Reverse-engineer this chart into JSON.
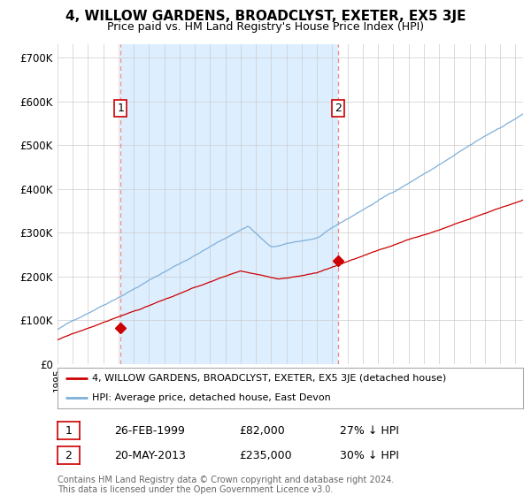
{
  "title": "4, WILLOW GARDENS, BROADCLYST, EXETER, EX5 3JE",
  "subtitle": "Price paid vs. HM Land Registry's House Price Index (HPI)",
  "ylabel_ticks": [
    "£0",
    "£100K",
    "£200K",
    "£300K",
    "£400K",
    "£500K",
    "£600K",
    "£700K"
  ],
  "ytick_values": [
    0,
    100000,
    200000,
    300000,
    400000,
    500000,
    600000,
    700000
  ],
  "ylim": [
    0,
    730000
  ],
  "xlim_start": 1995.0,
  "xlim_end": 2025.5,
  "red_line_color": "#cc0000",
  "blue_line_color": "#7fb0d8",
  "shade_color": "#ddeeff",
  "vline_color": "#ee8888",
  "point1_x": 1999.15,
  "point1_y": 82000,
  "point2_x": 2013.38,
  "point2_y": 235000,
  "legend_label_red": "4, WILLOW GARDENS, BROADCLYST, EXETER, EX5 3JE (detached house)",
  "legend_label_blue": "HPI: Average price, detached house, East Devon",
  "table_row1": [
    "1",
    "26-FEB-1999",
    "£82,000",
    "27% ↓ HPI"
  ],
  "table_row2": [
    "2",
    "20-MAY-2013",
    "£235,000",
    "30% ↓ HPI"
  ],
  "footnote": "Contains HM Land Registry data © Crown copyright and database right 2024.\nThis data is licensed under the Open Government Licence v3.0.",
  "background_color": "#ffffff",
  "plot_bg_color": "#ffffff",
  "grid_color": "#cccccc"
}
